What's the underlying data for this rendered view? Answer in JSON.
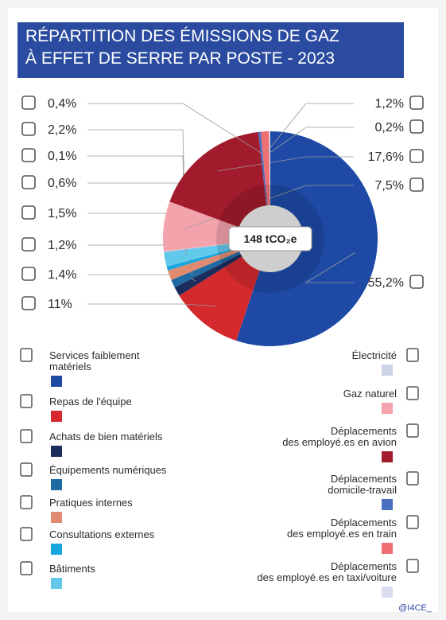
{
  "chart_data": {
    "type": "donut",
    "title": "RÉPARTITION DES ÉMISSIONS DE GAZ\nÀ EFFET DE SERRE PAR POSTE - 2023",
    "center_label": "148 tCO₂e",
    "categories": [
      "Services faiblement\nmatériels",
      "Repas de l'équipe",
      "Achats de bien matériels",
      "Équipements numériques",
      "Pratiques internes",
      "Consultations externes",
      "Bâtiments",
      "Électricité",
      "Gaz naturel",
      "Déplacements\ndes employé.es en avion",
      "Déplacements\ndomicile-travail",
      "Déplacements\ndes employé.es en train",
      "Déplacements\ndes employé.es en taxi/voiture"
    ],
    "values": [
      55.2,
      11,
      1.4,
      1.2,
      1.5,
      0.6,
      2.2,
      0.1,
      7.5,
      17.6,
      0.4,
      1.2,
      0.2
    ],
    "value_labels": [
      "55,2%",
      "11%",
      "1,4%",
      "1,2%",
      "1,5%",
      "0,6%",
      "2,2%",
      "0,1%",
      "7,5%",
      "17,6%",
      "0,4%",
      "1,2%",
      "0,2%"
    ],
    "colors": [
      "#1e4aa6",
      "#d42a2e",
      "#1b2d5c",
      "#1f6aa3",
      "#e08a70",
      "#18a6e0",
      "#62c9ea",
      "#cfd3e6",
      "#f2a3ab",
      "#a21b2c",
      "#4a6fc0",
      "#f06f72",
      "#d9ddef"
    ],
    "credit": "@I4CE_"
  }
}
